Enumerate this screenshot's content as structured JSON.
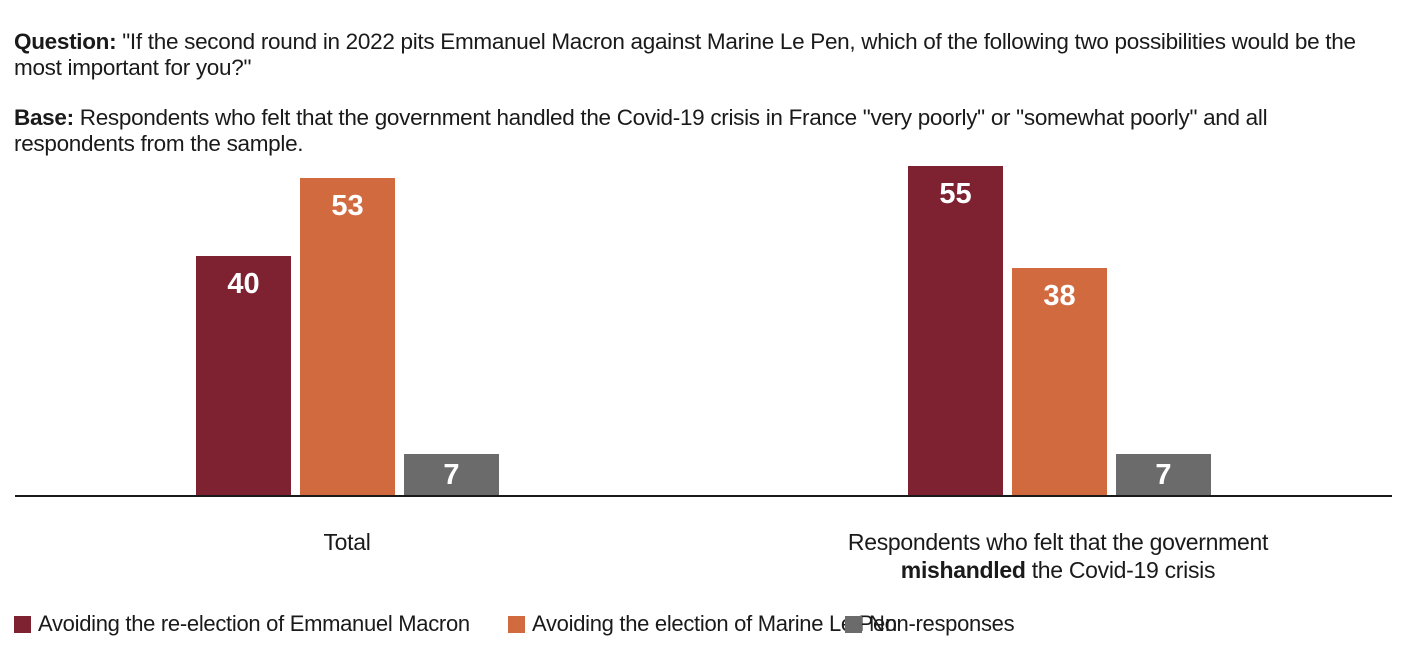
{
  "header": {
    "question_label": "Question:",
    "question_text": "\"If the second round in 2022 pits Emmanuel Macron against Marine Le Pen, which of the following two possibilities would be the most important for you?\"",
    "base_label": "Base:",
    "base_text": "Respondents who felt that the government handled the Covid-19 crisis in France \"very poorly\" or \"somewhat poorly\" and all respondents from the sample."
  },
  "chart_data": {
    "type": "bar",
    "categories": [
      "Total",
      "Respondents who felt that the government mishandled the Covid-19 crisis"
    ],
    "series": [
      {
        "name": "Avoiding the re-election of Emmanuel Macron",
        "color": "#7E2231",
        "values": [
          40,
          55
        ]
      },
      {
        "name": "Avoiding the election of Marine Le Pen",
        "color": "#D26A40",
        "values": [
          53,
          38
        ]
      },
      {
        "name": "Non-responses",
        "color": "#6B6B6B",
        "values": [
          7,
          7
        ]
      }
    ],
    "ylim": [
      0,
      60
    ],
    "grid": false,
    "value_labels": true,
    "value_label_color": "#FFFFFF",
    "axis_color": "#1A1A1A",
    "legend_position": "bottom"
  },
  "category_labels": {
    "first": "Total",
    "second_line1": "Respondents who felt that the government",
    "second_bold": "mishandled",
    "second_rest": " the Covid-19 crisis"
  },
  "legend": {
    "items": [
      {
        "label": "Avoiding the re-election of Emmanuel Macron",
        "color": "#7E2231"
      },
      {
        "label": "Avoiding the election of Marine Le Pen",
        "color": "#D26A40"
      },
      {
        "label": "Non-responses",
        "color": "#6B6B6B"
      }
    ]
  }
}
